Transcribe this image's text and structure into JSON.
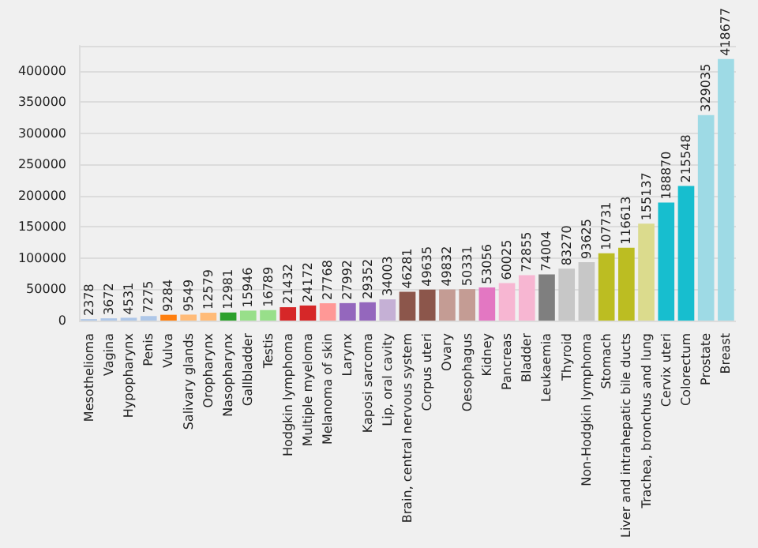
{
  "chart_data": {
    "type": "bar",
    "categories": [
      "Mesothelioma",
      "Vagina",
      "Hypopharynx",
      "Penis",
      "Vulva",
      "Salivary glands",
      "Oropharynx",
      "Nasopharynx",
      "Gallbladder",
      "Testis",
      "Hodgkin lymphoma",
      "Multiple myeloma",
      "Melanoma of skin",
      "Larynx",
      "Kaposi sarcoma",
      "Lip, oral cavity",
      "Brain, central nervous system",
      "Corpus uteri",
      "Ovary",
      "Oesophagus",
      "Kidney",
      "Pancreas",
      "Bladder",
      "Leukaemia",
      "Thyroid",
      "Non-Hodgkin lymphoma",
      "Stomach",
      "Liver and intrahepatic bile ducts",
      "Trachea, bronchus and lung",
      "Cervix uteri",
      "Colorectum",
      "Prostate",
      "Breast"
    ],
    "values": [
      2378,
      3672,
      4531,
      7275,
      9284,
      9549,
      12579,
      12981,
      15946,
      16789,
      21432,
      24172,
      27768,
      27992,
      29352,
      34003,
      46281,
      49635,
      49832,
      50331,
      53056,
      60025,
      72855,
      74004,
      83270,
      93625,
      107731,
      116613,
      155137,
      188870,
      215548,
      329035,
      418677
    ],
    "colors": [
      "#aec7e8",
      "#aec7e8",
      "#aec7e8",
      "#aec7e8",
      "#ff7f0e",
      "#ffbb78",
      "#ffbb78",
      "#2ca02c",
      "#98df8a",
      "#98df8a",
      "#d62728",
      "#d62728",
      "#ff9896",
      "#9467bd",
      "#9467bd",
      "#c5b0d5",
      "#8c564b",
      "#8c564b",
      "#c49c94",
      "#c49c94",
      "#e377c2",
      "#f7b6d2",
      "#f7b6d2",
      "#7f7f7f",
      "#c7c7c7",
      "#c7c7c7",
      "#bcbd22",
      "#bcbd22",
      "#dbdb8d",
      "#17becf",
      "#17becf",
      "#9edae5",
      "#9edae5"
    ],
    "ylim": [
      0,
      440000
    ],
    "yticks": [
      0,
      50000,
      100000,
      150000,
      200000,
      250000,
      300000,
      350000,
      400000
    ],
    "grid": "y",
    "data_labels": true
  }
}
